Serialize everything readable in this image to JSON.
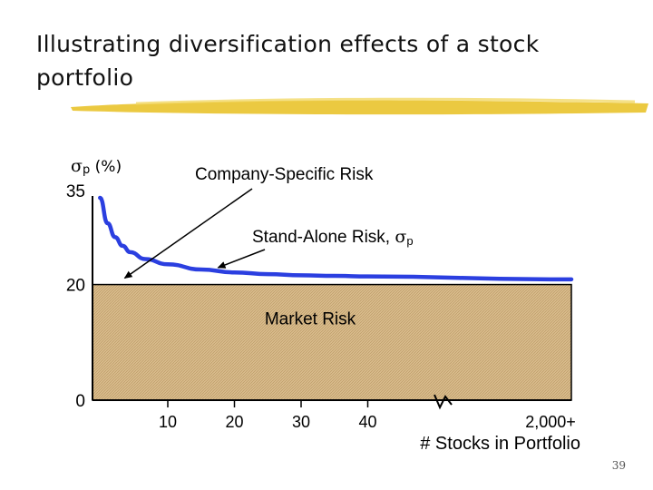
{
  "slide": {
    "title": "Illustrating diversification effects of a stock portfolio",
    "page_number": "39"
  },
  "colors": {
    "curve": "#2b3fe0",
    "market_fill": "#d4b483",
    "axis": "#000000",
    "title_underline": "#e6c12a"
  },
  "chart_data": {
    "type": "line",
    "ylabel_sigma": "σ",
    "ylabel_sub": "p",
    "ylabel_unit": " (%)",
    "xlabel": "# Stocks in Portfolio",
    "ylim": [
      0,
      35
    ],
    "y_ticks": [
      {
        "value": 35,
        "label": "35"
      },
      {
        "value": 20,
        "label": "20"
      },
      {
        "value": 0,
        "label": "0"
      }
    ],
    "x_ticks": [
      {
        "value": 10,
        "label": "10"
      },
      {
        "value": 20,
        "label": "20"
      },
      {
        "value": 30,
        "label": "30"
      },
      {
        "value": 40,
        "label": "40"
      },
      {
        "value": 2000,
        "label": "2,000+"
      }
    ],
    "axis_break_marker": true,
    "series": [
      {
        "x": [
          1,
          2,
          3,
          4,
          5,
          7,
          10,
          15,
          20,
          25,
          30,
          35,
          40,
          2000
        ],
        "values": [
          35.0,
          30.6,
          28.2,
          26.7,
          25.6,
          24.4,
          23.5,
          22.6,
          22.1,
          21.8,
          21.6,
          21.5,
          21.4,
          20.9
        ]
      }
    ],
    "market_risk_region": {
      "from": 0,
      "to": 20,
      "label": "Market Risk"
    },
    "annotations": [
      {
        "text": "Company-Specific Risk",
        "points_to": {
          "x": 5,
          "y": 20.8
        }
      },
      {
        "text_main": "Stand-Alone Risk, ",
        "text_sigma": "σ",
        "text_sub": "p",
        "points_to": {
          "x": 17,
          "y": 22.3
        }
      }
    ]
  }
}
